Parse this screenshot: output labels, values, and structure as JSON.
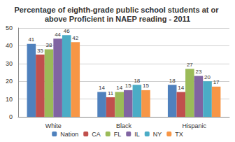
{
  "chart_data": {
    "type": "bar",
    "title": "Percentage of eighth-grade public school students at or above Proficient in NAEP reading - 2011",
    "categories": [
      "White",
      "Black",
      "Hispanic"
    ],
    "series": [
      {
        "name": "Nation",
        "color": "#4f81bd",
        "values": [
          41,
          14,
          18
        ]
      },
      {
        "name": "CA",
        "color": "#c0504d",
        "values": [
          35,
          11,
          14
        ]
      },
      {
        "name": "FL",
        "color": "#9bbb59",
        "values": [
          38,
          14,
          27
        ]
      },
      {
        "name": "IL",
        "color": "#8064a2",
        "values": [
          44,
          15,
          23
        ]
      },
      {
        "name": "NY",
        "color": "#4bacc6",
        "values": [
          46,
          18,
          20
        ]
      },
      {
        "name": "TX",
        "color": "#f79646",
        "values": [
          42,
          15,
          17
        ]
      }
    ],
    "ylim": [
      0,
      50
    ],
    "yticks": [
      0,
      10,
      20,
      30,
      40,
      50
    ],
    "grid": true,
    "legend": "bottom",
    "data_labels": true
  }
}
